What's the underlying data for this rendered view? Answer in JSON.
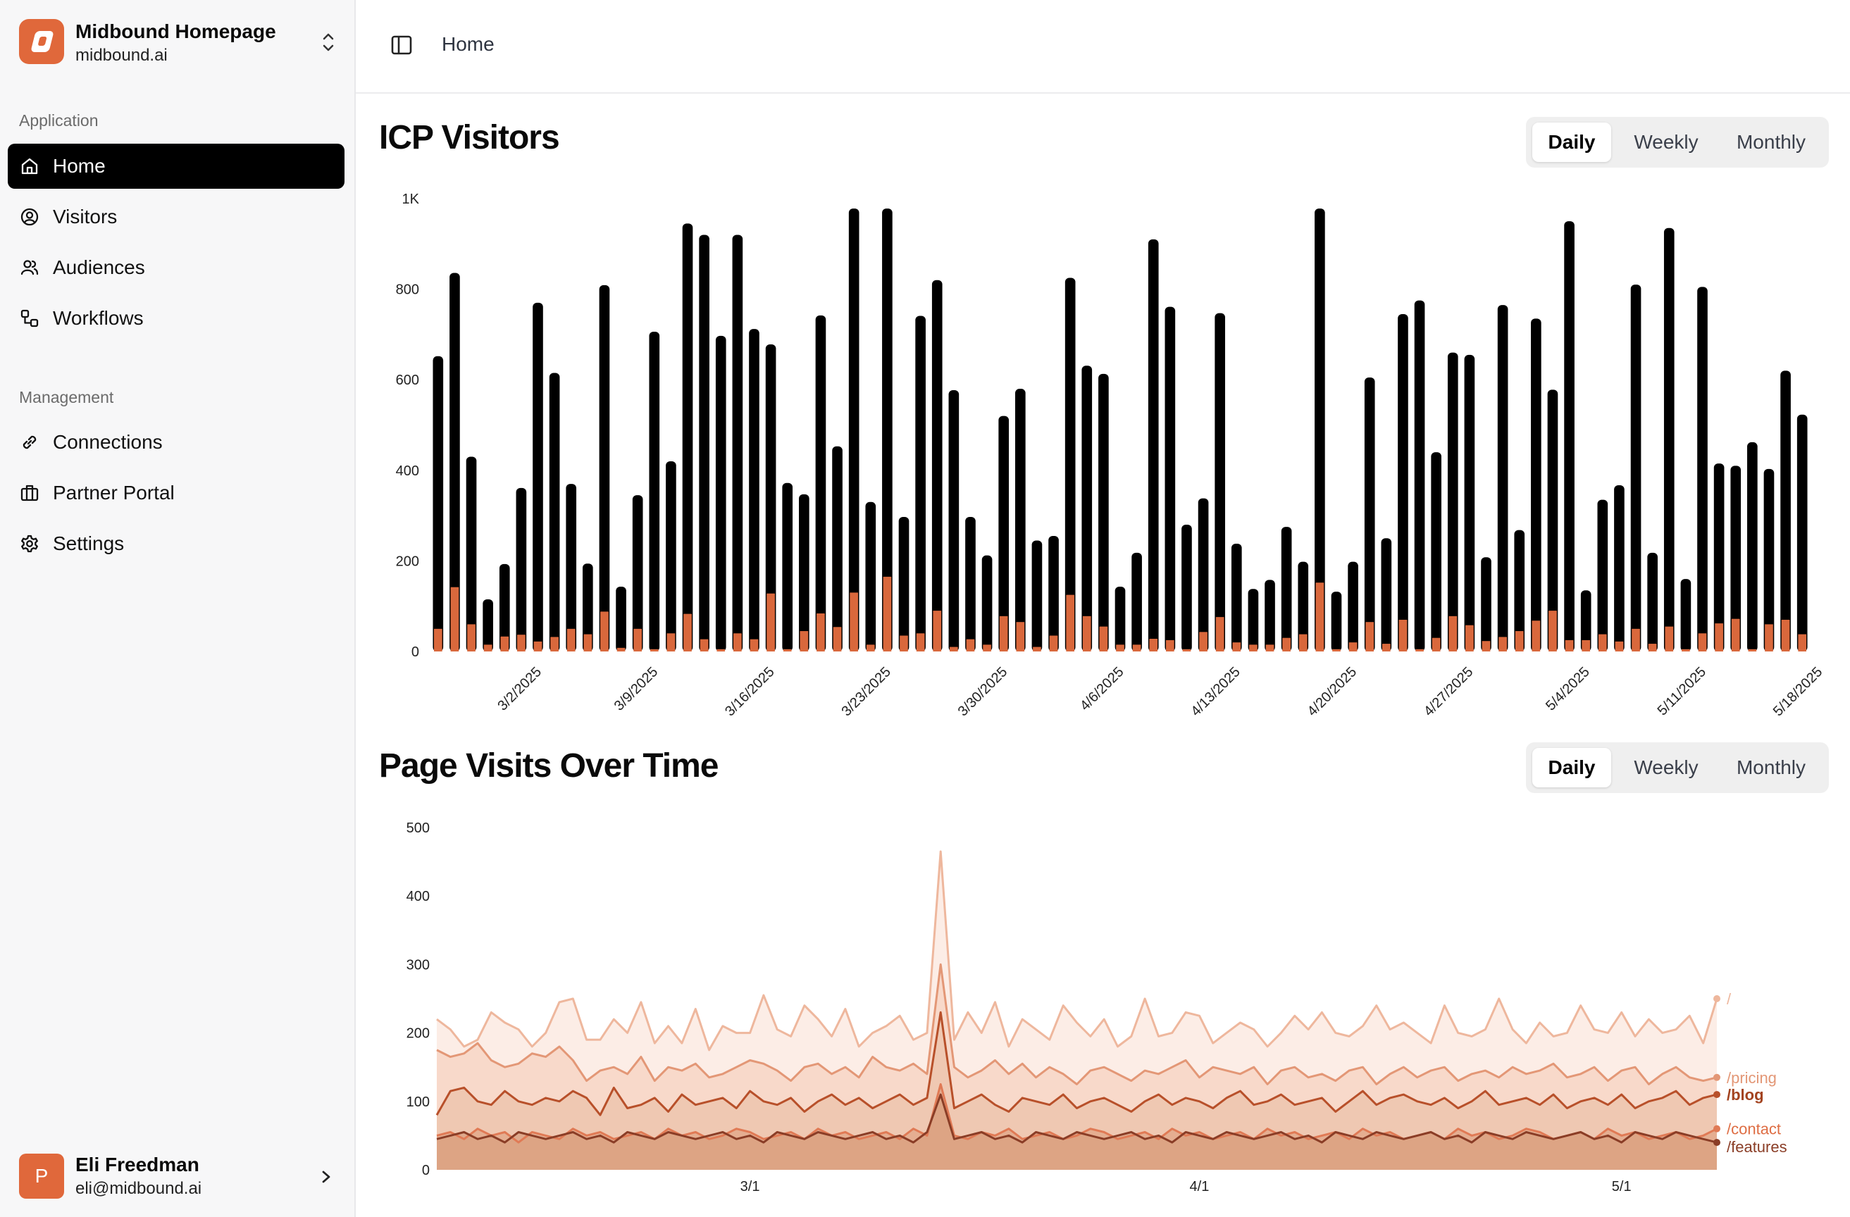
{
  "workspace": {
    "name": "Midbound Homepage",
    "domain": "midbound.ai"
  },
  "sidebar": {
    "groups": [
      {
        "label": "Application",
        "items": [
          {
            "label": "Home",
            "icon": "home-icon",
            "active": true
          },
          {
            "label": "Visitors",
            "icon": "user-circle-icon"
          },
          {
            "label": "Audiences",
            "icon": "users-icon"
          },
          {
            "label": "Workflows",
            "icon": "workflow-icon"
          }
        ]
      },
      {
        "label": "Management",
        "items": [
          {
            "label": "Connections",
            "icon": "link-icon"
          },
          {
            "label": "Partner Portal",
            "icon": "briefcase-icon"
          },
          {
            "label": "Settings",
            "icon": "gear-icon"
          }
        ]
      }
    ]
  },
  "user": {
    "initial": "P",
    "name": "Eli Freedman",
    "email": "eli@midbound.ai"
  },
  "header": {
    "breadcrumb": "Home"
  },
  "colors": {
    "accent": "#e0683b",
    "bar_total": "#000000",
    "bar_icp": "#d9683c",
    "active_nav": "#000000"
  },
  "sections": [
    {
      "title": "ICP Visitors",
      "toggle": [
        "Daily",
        "Weekly",
        "Monthly"
      ],
      "selected": "Daily"
    },
    {
      "title": "Page Visits Over Time",
      "toggle": [
        "Daily",
        "Weekly",
        "Monthly"
      ],
      "selected": "Daily"
    }
  ],
  "chart_data": [
    {
      "type": "bar",
      "title": "",
      "xlabel": "",
      "ylabel": "",
      "ylim": [
        0,
        1000
      ],
      "yticks": [
        "0",
        "200",
        "400",
        "600",
        "800",
        "1K"
      ],
      "xtick_labels": [
        "3/2/2025",
        "3/9/2025",
        "3/16/2025",
        "3/23/2025",
        "3/30/2025",
        "4/6/2025",
        "4/13/2025",
        "4/20/2025",
        "4/27/2025",
        "5/4/2025",
        "5/11/2025",
        "5/18/2025"
      ],
      "grid": false,
      "series": [
        {
          "values": [
            652,
            836,
            430,
            115,
            193,
            361,
            770,
            615,
            370,
            194,
            809,
            143,
            345,
            706,
            420,
            945,
            920,
            697,
            920,
            712,
            678,
            372,
            347,
            742,
            453,
            978,
            330,
            978,
            297,
            741,
            820,
            577,
            297,
            212,
            520,
            580,
            245,
            255,
            825,
            631,
            613,
            143,
            218,
            910,
            761,
            280,
            338,
            747,
            238,
            138,
            158,
            275,
            198,
            978,
            132,
            198,
            605,
            250,
            745,
            775,
            440,
            660,
            655,
            208,
            765,
            268,
            735,
            578,
            950,
            135,
            335,
            367,
            810,
            218,
            935,
            160,
            805,
            415,
            410,
            462,
            403,
            620,
            523
          ]
        },
        {
          "values": [
            50,
            142,
            60,
            15,
            33,
            37,
            22,
            32,
            50,
            38,
            88,
            8,
            50,
            5,
            40,
            83,
            27,
            5,
            40,
            27,
            128,
            5,
            45,
            84,
            54,
            130,
            15,
            165,
            35,
            40,
            90,
            10,
            27,
            15,
            78,
            65,
            10,
            35,
            125,
            78,
            55,
            15,
            15,
            28,
            25,
            5,
            43,
            76,
            20,
            15,
            15,
            30,
            38,
            152,
            5,
            20,
            65,
            17,
            70,
            5,
            30,
            78,
            58,
            23,
            32,
            45,
            68,
            90,
            25,
            25,
            38,
            22,
            50,
            17,
            55,
            5,
            40,
            62,
            72,
            5,
            60,
            70,
            38
          ]
        }
      ]
    },
    {
      "type": "area",
      "title": "",
      "ylim": [
        0,
        500
      ],
      "yticks": [
        "0",
        "100",
        "200",
        "300",
        "400",
        "500"
      ],
      "xtick_labels": [
        "3/1",
        "4/1",
        "5/1"
      ],
      "series": [
        {
          "name": "/",
          "values": [
            220,
            205,
            180,
            190,
            230,
            215,
            205,
            180,
            200,
            245,
            250,
            190,
            190,
            220,
            200,
            245,
            185,
            210,
            185,
            235,
            175,
            210,
            200,
            200,
            255,
            205,
            195,
            240,
            220,
            195,
            235,
            180,
            200,
            210,
            225,
            190,
            200,
            465,
            190,
            230,
            200,
            245,
            180,
            220,
            205,
            190,
            240,
            215,
            195,
            220,
            180,
            195,
            250,
            195,
            200,
            230,
            225,
            185,
            200,
            215,
            205,
            180,
            200,
            225,
            205,
            230,
            200,
            195,
            210,
            240,
            205,
            215,
            200,
            185,
            240,
            200,
            195,
            205,
            250,
            205,
            185,
            215,
            195,
            200,
            240,
            205,
            200,
            230,
            195,
            220,
            200,
            205,
            225,
            185,
            250
          ]
        },
        {
          "name": "/pricing",
          "values": [
            175,
            165,
            170,
            185,
            160,
            150,
            155,
            170,
            165,
            180,
            160,
            130,
            145,
            150,
            140,
            165,
            130,
            150,
            145,
            155,
            135,
            140,
            150,
            160,
            155,
            145,
            130,
            150,
            155,
            140,
            150,
            135,
            165,
            150,
            145,
            155,
            140,
            300,
            150,
            135,
            145,
            160,
            140,
            155,
            135,
            150,
            140,
            125,
            145,
            150,
            140,
            130,
            145,
            140,
            150,
            160,
            135,
            150,
            145,
            140,
            150,
            125,
            145,
            150,
            135,
            140,
            130,
            145,
            150,
            125,
            140,
            150,
            135,
            145,
            150,
            130,
            140,
            145,
            135,
            150,
            140,
            145,
            155,
            135,
            140,
            150,
            130,
            145,
            150,
            125,
            140,
            150,
            135,
            130,
            135
          ]
        },
        {
          "name": "/blog",
          "values": [
            80,
            115,
            120,
            100,
            95,
            115,
            100,
            95,
            105,
            100,
            115,
            105,
            80,
            120,
            90,
            95,
            105,
            85,
            110,
            95,
            100,
            105,
            90,
            115,
            100,
            95,
            105,
            85,
            100,
            110,
            95,
            105,
            90,
            100,
            110,
            95,
            105,
            230,
            90,
            100,
            110,
            95,
            85,
            105,
            100,
            95,
            110,
            90,
            100,
            105,
            95,
            85,
            100,
            110,
            95,
            105,
            100,
            90,
            105,
            115,
            95,
            100,
            110,
            95,
            100,
            105,
            85,
            100,
            115,
            95,
            105,
            110,
            100,
            95,
            105,
            90,
            100,
            115,
            95,
            100,
            105,
            95,
            110,
            90,
            100,
            105,
            95,
            110,
            90,
            100,
            105,
            115,
            95,
            105,
            110
          ]
        },
        {
          "name": "/contact",
          "values": [
            50,
            55,
            45,
            60,
            50,
            55,
            40,
            55,
            50,
            45,
            60,
            50,
            55,
            45,
            50,
            55,
            45,
            60,
            50,
            55,
            45,
            50,
            60,
            55,
            45,
            50,
            55,
            45,
            60,
            50,
            55,
            45,
            50,
            55,
            45,
            60,
            50,
            125,
            50,
            45,
            55,
            50,
            60,
            45,
            50,
            55,
            45,
            50,
            60,
            55,
            45,
            50,
            55,
            45,
            60,
            50,
            55,
            45,
            50,
            55,
            45,
            60,
            50,
            55,
            45,
            50,
            55,
            45,
            60,
            50,
            55,
            45,
            50,
            55,
            45,
            60,
            50,
            55,
            45,
            50,
            60,
            55,
            45,
            50,
            55,
            45,
            60,
            50,
            55,
            45,
            50,
            55,
            45,
            50,
            60
          ]
        },
        {
          "name": "/features",
          "values": [
            45,
            50,
            55,
            45,
            50,
            40,
            55,
            50,
            45,
            50,
            55,
            45,
            50,
            40,
            55,
            50,
            45,
            55,
            50,
            45,
            50,
            55,
            45,
            50,
            40,
            55,
            50,
            45,
            55,
            50,
            45,
            50,
            55,
            45,
            50,
            40,
            55,
            110,
            45,
            50,
            55,
            45,
            50,
            40,
            55,
            50,
            45,
            55,
            50,
            45,
            50,
            55,
            45,
            50,
            40,
            55,
            50,
            45,
            55,
            50,
            45,
            50,
            55,
            45,
            50,
            40,
            55,
            50,
            45,
            55,
            50,
            45,
            50,
            55,
            45,
            50,
            40,
            55,
            50,
            45,
            55,
            50,
            45,
            50,
            55,
            45,
            50,
            40,
            55,
            50,
            45,
            55,
            50,
            45,
            40
          ]
        }
      ]
    }
  ]
}
